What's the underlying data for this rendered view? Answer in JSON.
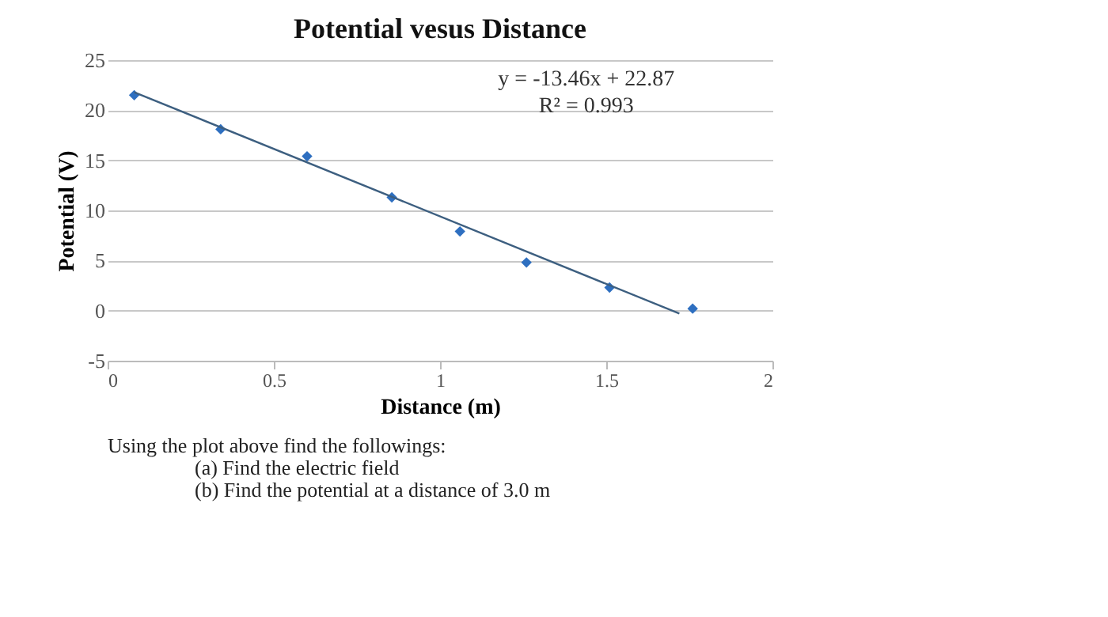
{
  "chart_data": {
    "type": "scatter",
    "title": "Potential vesus Distance",
    "xlabel": "Distance (m)",
    "ylabel": "Potential (V)",
    "x": [
      0.08,
      0.34,
      0.6,
      0.855,
      1.06,
      1.26,
      1.51,
      1.76
    ],
    "series": [
      {
        "color": "#2e6fc0",
        "marker": "diamond",
        "values": [
          21.5,
          18.1,
          15.4,
          11.3,
          7.9,
          4.8,
          2.3,
          0.2
        ]
      },
      {
        "type": "line",
        "color": "#3d5f80",
        "x": [
          0.08,
          1.72
        ],
        "values": [
          21.8,
          -0.3
        ]
      }
    ],
    "xlim": [
      0,
      2
    ],
    "xticks": [
      0,
      0.5,
      1,
      1.5,
      2
    ],
    "ylim": [
      -5,
      25
    ],
    "yticks": [
      -5,
      0,
      5,
      10,
      15,
      20,
      25
    ],
    "grid": "y",
    "legend": false,
    "annotations": [
      "y = -13.46x + 22.87",
      "R² = 0.993",
      "Using the plot above find the followings:",
      "(a) Find the electric field",
      "(b) Find the potential at a distance of 3.0 m"
    ]
  }
}
